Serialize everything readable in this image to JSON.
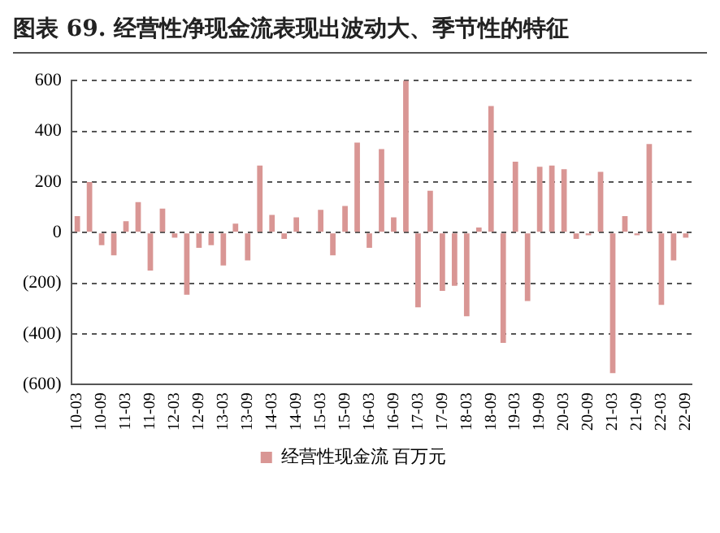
{
  "chart_data": {
    "type": "bar",
    "title": "图表 69. 经营性净现金流表现出波动大、季节性的特征",
    "categories": [
      "10-03",
      null,
      "10-09",
      null,
      "11-03",
      null,
      "11-09",
      null,
      "12-03",
      null,
      "12-09",
      null,
      "13-03",
      null,
      "13-09",
      null,
      "14-03",
      null,
      "14-09",
      null,
      "15-03",
      null,
      "15-09",
      null,
      "16-03",
      null,
      "16-09",
      null,
      "17-03",
      null,
      "17-09",
      null,
      "18-03",
      null,
      "18-09",
      null,
      "19-03",
      null,
      "19-09",
      null,
      "20-03",
      null,
      "20-09",
      null,
      "21-03",
      null,
      "21-09",
      null,
      "22-03",
      null,
      "22-09"
    ],
    "series": [
      {
        "name": "经营性现金流 百万元",
        "color": "#d99694",
        "values": [
          65,
          200,
          -50,
          -90,
          45,
          120,
          -150,
          95,
          -20,
          -245,
          -60,
          -50,
          -130,
          35,
          -110,
          265,
          70,
          -25,
          60,
          null,
          90,
          -90,
          105,
          355,
          -60,
          330,
          60,
          600,
          -295,
          165,
          -230,
          -210,
          -330,
          20,
          500,
          -435,
          280,
          -270,
          260,
          265,
          250,
          -25,
          -10,
          240,
          -555,
          65,
          -10,
          350,
          -285,
          -110,
          -20
        ]
      }
    ],
    "ylim": [
      -600,
      600
    ],
    "yticks": [
      {
        "value": -600,
        "label": "(600)"
      },
      {
        "value": -400,
        "label": "(400)"
      },
      {
        "value": -200,
        "label": "(200)"
      },
      0,
      200,
      400,
      600
    ],
    "grid": "y",
    "legend": "bottom"
  }
}
